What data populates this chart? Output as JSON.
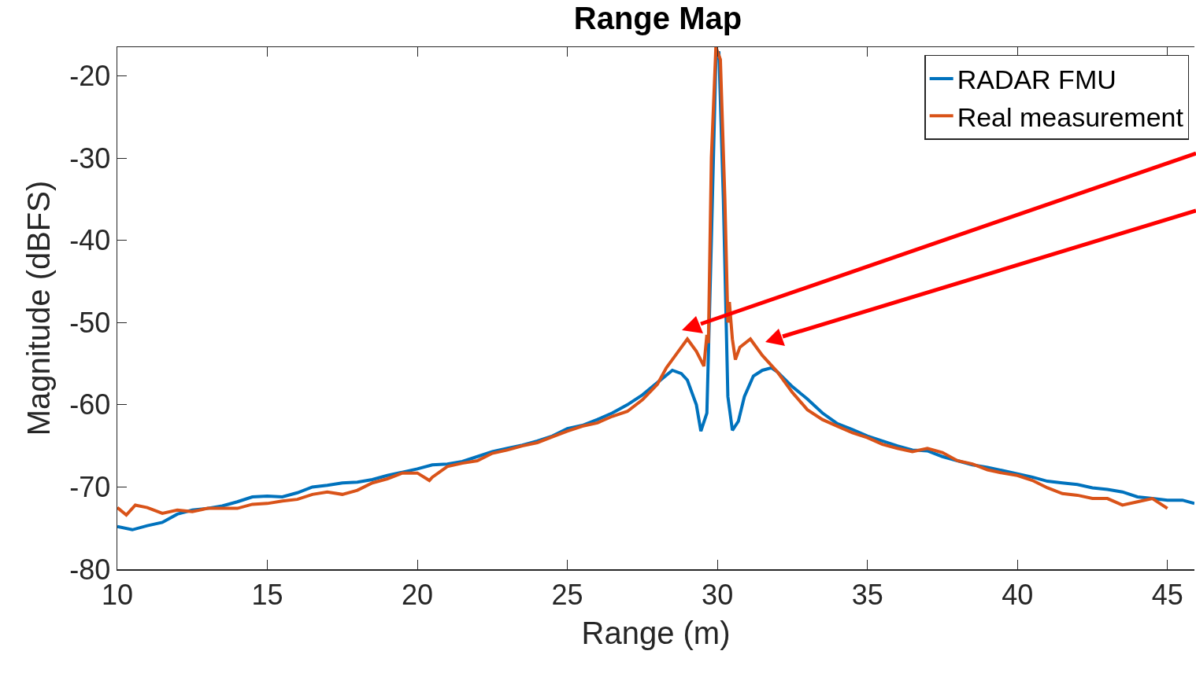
{
  "chart_data": {
    "type": "line",
    "title": "Range Map",
    "xlabel": "Range (m)",
    "ylabel": "Magnitude (dBFS)",
    "xlim": [
      10,
      45.9
    ],
    "xticks": [
      10,
      15,
      20,
      25,
      30,
      35,
      40,
      45
    ],
    "ylim": [
      -80,
      -16.5
    ],
    "yticks": [
      -80,
      -70,
      -60,
      -50,
      -40,
      -30,
      -20
    ],
    "grid": false,
    "legend": "top right",
    "marker": "none",
    "line_style": "solid",
    "series": [
      {
        "name": "RADAR FMU",
        "color": "#0072bd",
        "x": [
          10,
          10.5,
          11,
          11.5,
          12,
          12.5,
          13,
          13.5,
          14,
          14.5,
          15,
          15.5,
          16,
          16.5,
          17,
          17.5,
          18,
          18.5,
          19,
          19.5,
          20,
          20.5,
          21,
          21.5,
          22,
          22.5,
          23,
          23.5,
          24,
          24.5,
          25,
          25.5,
          26,
          26.5,
          27,
          27.5,
          28,
          28.5,
          28.8,
          29,
          29.3,
          29.45,
          29.65,
          29.8,
          29.95,
          30.05,
          30.2,
          30.35,
          30.5,
          30.7,
          30.9,
          31.2,
          31.5,
          31.8,
          32,
          32.5,
          33,
          33.5,
          34,
          34.5,
          35,
          35.5,
          36,
          36.5,
          37,
          37.5,
          38,
          38.5,
          39,
          39.5,
          40,
          40.5,
          41,
          41.5,
          42,
          42.5,
          43,
          43.5,
          44,
          44.5,
          45,
          45.5,
          45.9
        ],
        "values": [
          -74.8,
          -75.2,
          -74.7,
          -74.3,
          -73.3,
          -72.8,
          -72.6,
          -72.3,
          -71.8,
          -71.2,
          -71.1,
          -71.2,
          -70.7,
          -70,
          -69.8,
          -69.5,
          -69.4,
          -69.1,
          -68.6,
          -68.2,
          -67.8,
          -67.3,
          -67.2,
          -66.9,
          -66.3,
          -65.7,
          -65.3,
          -64.9,
          -64.4,
          -63.8,
          -62.9,
          -62.5,
          -61.8,
          -61,
          -60,
          -58.8,
          -57.3,
          -55.8,
          -56.2,
          -57,
          -60,
          -63.2,
          -61,
          -40,
          -18,
          -17,
          -35,
          -59,
          -63.1,
          -62,
          -59,
          -56.5,
          -55.8,
          -55.5,
          -56,
          -57.8,
          -59.3,
          -61,
          -62.3,
          -63,
          -63.8,
          -64.4,
          -65,
          -65.5,
          -65.6,
          -66.3,
          -66.8,
          -67.3,
          -67.6,
          -68,
          -68.4,
          -68.8,
          -69.3,
          -69.5,
          -69.7,
          -70.1,
          -70.3,
          -70.6,
          -71.2,
          -71.4,
          -71.6,
          -71.6,
          -72
        ]
      },
      {
        "name": "Real measurement",
        "color": "#d95319",
        "x": [
          10,
          10.3,
          10.6,
          11,
          11.5,
          12,
          12.5,
          13,
          13.5,
          14,
          14.5,
          15,
          15.5,
          16,
          16.5,
          17,
          17.5,
          18,
          18.5,
          19,
          19.5,
          20,
          20.4,
          20.5,
          21,
          21.5,
          22,
          22.5,
          23,
          23.5,
          24,
          24.5,
          25,
          25.5,
          26,
          26.5,
          27,
          27.5,
          28,
          28.3,
          28.6,
          29,
          29.3,
          29.55,
          29.65,
          29.7,
          29.8,
          29.95,
          30.1,
          30.25,
          30.35,
          30.4,
          30.5,
          30.6,
          30.75,
          31.1,
          31.5,
          32,
          32.5,
          33,
          33.5,
          34,
          34.5,
          35,
          35.5,
          36,
          36.5,
          37,
          37.5,
          38,
          38.5,
          39,
          39.5,
          40,
          40.5,
          41,
          41.5,
          42,
          42.5,
          43,
          43.5,
          44,
          44.5,
          45
        ],
        "values": [
          -72.5,
          -73.4,
          -72.2,
          -72.5,
          -73.2,
          -72.8,
          -73,
          -72.6,
          -72.6,
          -72.6,
          -72.1,
          -72,
          -71.7,
          -71.5,
          -70.9,
          -70.6,
          -70.9,
          -70.4,
          -69.5,
          -69,
          -68.3,
          -68.3,
          -69.2,
          -68.8,
          -67.5,
          -67.1,
          -66.8,
          -65.9,
          -65.5,
          -65,
          -64.6,
          -63.9,
          -63.2,
          -62.6,
          -62.2,
          -61.4,
          -60.8,
          -59.4,
          -57.5,
          -55.5,
          -54,
          -52,
          -53.5,
          -55.3,
          -51.5,
          -52.5,
          -30,
          -16.5,
          -18,
          -35,
          -50,
          -47.5,
          -52,
          -54.5,
          -53,
          -52,
          -54,
          -56,
          -58.5,
          -60.6,
          -61.8,
          -62.6,
          -63.4,
          -64,
          -64.8,
          -65.3,
          -65.7,
          -65.3,
          -65.8,
          -66.8,
          -67.2,
          -67.9,
          -68.3,
          -68.6,
          -69.2,
          -70.1,
          -70.8,
          -71,
          -71.4,
          -71.4,
          -72.2,
          -71.8,
          -71.4,
          -72.6
        ]
      }
    ]
  }
}
